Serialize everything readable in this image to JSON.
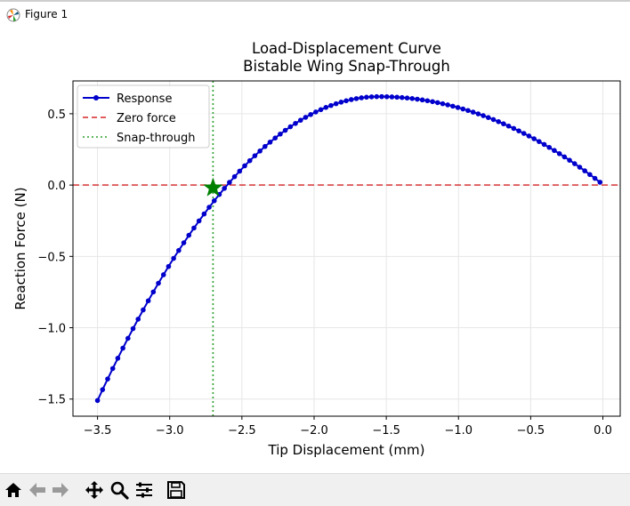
{
  "window": {
    "title": "Figure 1"
  },
  "toolbar": {
    "buttons": [
      {
        "name": "home-button",
        "icon": "home-icon"
      },
      {
        "name": "back-button",
        "icon": "arrow-left-icon"
      },
      {
        "name": "forward-button",
        "icon": "arrow-right-icon"
      },
      {
        "name": "pan-button",
        "icon": "move-icon"
      },
      {
        "name": "zoom-button",
        "icon": "magnifier-icon"
      },
      {
        "name": "configure-subplots-button",
        "icon": "sliders-icon"
      },
      {
        "name": "save-button",
        "icon": "floppy-disk-icon"
      }
    ]
  },
  "chart_data": {
    "type": "line",
    "title": "Load-Displacement Curve\nBistable Wing Snap-Through",
    "title_lines": [
      "Load-Displacement Curve",
      "Bistable Wing Snap-Through"
    ],
    "xlabel": "Tip Displacement (mm)",
    "ylabel": "Reaction Force (N)",
    "xlim": [
      -3.67,
      0.12
    ],
    "ylim": [
      -1.62,
      0.73
    ],
    "xticks": [
      -3.5,
      -3.0,
      -2.5,
      -2.0,
      -1.5,
      -1.0,
      -0.5,
      0.0
    ],
    "xtick_labels": [
      "−3.5",
      "−3.0",
      "−2.5",
      "−2.0",
      "−1.5",
      "−1.0",
      "−0.5",
      "0.0"
    ],
    "yticks": [
      -1.5,
      -1.0,
      -0.5,
      0.0,
      0.5
    ],
    "ytick_labels": [
      "−1.5",
      "−1.0",
      "−0.5",
      "0.0",
      "0.5"
    ],
    "grid": true,
    "legend_position": "top-left",
    "series": [
      {
        "name": "Response",
        "style": "line-with-markers",
        "color": "#0000cc",
        "x_start": -3.5,
        "x_end": -0.02,
        "n_points": 100,
        "peak_x": -1.55,
        "peak_y": 0.62,
        "y_at_start": -1.51,
        "y_at_end": 0.02
      },
      {
        "name": "Zero force",
        "style": "dashed",
        "color": "#d62728",
        "y": 0.0
      },
      {
        "name": "Snap-through",
        "style": "dotted",
        "color": "#2ca02c",
        "x": -2.7
      }
    ],
    "annotations": [
      {
        "type": "star-marker",
        "x": -2.7,
        "y": -0.02,
        "color": "#008000"
      }
    ],
    "background": "#ffffff",
    "axes_color": "#000000",
    "grid_color": "#e6e6e6"
  }
}
